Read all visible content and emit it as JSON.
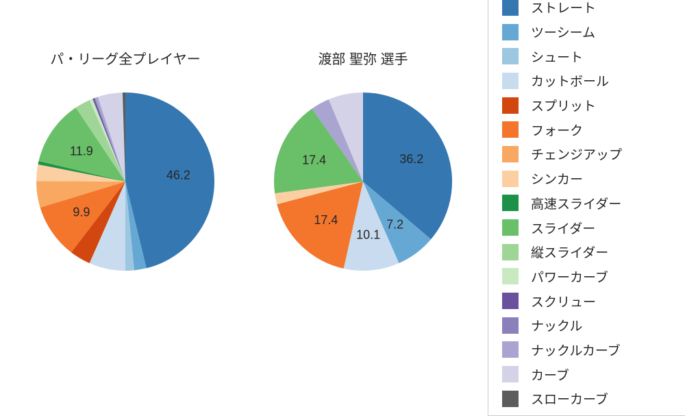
{
  "page": {
    "background": "#ffffff"
  },
  "legend": {
    "position": "right",
    "border_color": "#cccccc",
    "items": [
      {
        "label": "ストレート",
        "color": "#3577b1"
      },
      {
        "label": "ツーシーム",
        "color": "#66a8d4"
      },
      {
        "label": "シュート",
        "color": "#9dc6e0"
      },
      {
        "label": "カットボール",
        "color": "#c9dcef"
      },
      {
        "label": "スプリット",
        "color": "#d1470f"
      },
      {
        "label": "フォーク",
        "color": "#f3762c"
      },
      {
        "label": "チェンジアップ",
        "color": "#f8a860"
      },
      {
        "label": "シンカー",
        "color": "#fccfa2"
      },
      {
        "label": "高速スライダー",
        "color": "#1e9148"
      },
      {
        "label": "スライダー",
        "color": "#6abf69"
      },
      {
        "label": "縦スライダー",
        "color": "#9fd596"
      },
      {
        "label": "パワーカーブ",
        "color": "#c8e9c2"
      },
      {
        "label": "スクリュー",
        "color": "#69519e"
      },
      {
        "label": "ナックル",
        "color": "#8b7fbc"
      },
      {
        "label": "ナックルカーブ",
        "color": "#aaa4d0"
      },
      {
        "label": "カーブ",
        "color": "#d3d2e7"
      },
      {
        "label": "スローカーブ",
        "color": "#5c5c5c"
      }
    ]
  },
  "chart_data": [
    {
      "type": "pie",
      "title": "パ・リーグ全プレイヤー",
      "unit": "percent",
      "start_angle": "12-oclock",
      "direction": "clockwise",
      "slices": [
        {
          "label": "ストレート",
          "value": 46.2,
          "show_label": true
        },
        {
          "label": "ツーシーム",
          "value": 2.2,
          "show_label": false
        },
        {
          "label": "シュート",
          "value": 1.6,
          "show_label": false
        },
        {
          "label": "カットボール",
          "value": 6.6,
          "show_label": false
        },
        {
          "label": "スプリット",
          "value": 3.8,
          "show_label": false
        },
        {
          "label": "フォーク",
          "value": 9.9,
          "show_label": true
        },
        {
          "label": "チェンジアップ",
          "value": 4.8,
          "show_label": false
        },
        {
          "label": "シンカー",
          "value": 3.0,
          "show_label": false
        },
        {
          "label": "高速スライダー",
          "value": 0.6,
          "show_label": false
        },
        {
          "label": "スライダー",
          "value": 11.9,
          "show_label": true
        },
        {
          "label": "縦スライダー",
          "value": 2.8,
          "show_label": false
        },
        {
          "label": "パワーカーブ",
          "value": 0.6,
          "show_label": false
        },
        {
          "label": "スクリュー",
          "value": 0.3,
          "show_label": false
        },
        {
          "label": "ナックル",
          "value": 0.2,
          "show_label": false
        },
        {
          "label": "ナックルカーブ",
          "value": 0.5,
          "show_label": false
        },
        {
          "label": "カーブ",
          "value": 4.5,
          "show_label": false
        },
        {
          "label": "スローカーブ",
          "value": 0.5,
          "show_label": false
        }
      ]
    },
    {
      "type": "pie",
      "title": "渡部 聖弥 選手",
      "unit": "percent",
      "start_angle": "12-oclock",
      "direction": "clockwise",
      "slices": [
        {
          "label": "ストレート",
          "value": 36.2,
          "show_label": true
        },
        {
          "label": "ツーシーム",
          "value": 7.2,
          "show_label": true
        },
        {
          "label": "カットボール",
          "value": 10.1,
          "show_label": true
        },
        {
          "label": "フォーク",
          "value": 17.4,
          "show_label": true
        },
        {
          "label": "シンカー",
          "value": 2.0,
          "show_label": false
        },
        {
          "label": "スライダー",
          "value": 17.4,
          "show_label": true
        },
        {
          "label": "ナックルカーブ",
          "value": 3.4,
          "show_label": false
        },
        {
          "label": "カーブ",
          "value": 6.3,
          "show_label": false
        }
      ]
    }
  ]
}
